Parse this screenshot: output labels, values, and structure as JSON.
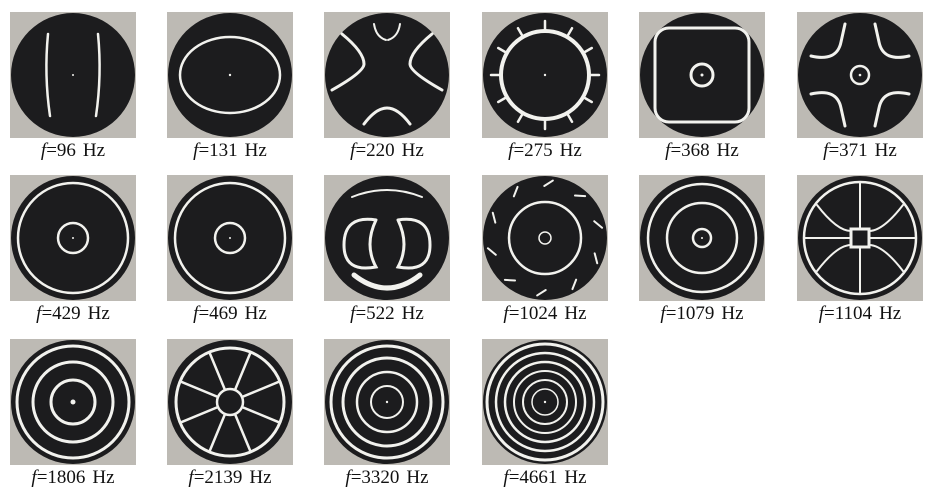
{
  "figure": {
    "panels": [
      {
        "pattern": "two-vertical-lines",
        "symbol": "f",
        "value": "96",
        "unit": "Hz"
      },
      {
        "pattern": "ellipse",
        "symbol": "f",
        "value": "131",
        "unit": "Hz"
      },
      {
        "pattern": "four-arms-x",
        "symbol": "f",
        "value": "220",
        "unit": "Hz"
      },
      {
        "pattern": "ring-with-spikes",
        "symbol": "f",
        "value": "275",
        "unit": "Hz"
      },
      {
        "pattern": "rounded-square-small-ring",
        "symbol": "f",
        "value": "368",
        "unit": "Hz"
      },
      {
        "pattern": "four-arms-small-ring",
        "symbol": "f",
        "value": "371",
        "unit": "Hz"
      },
      {
        "pattern": "two-rings",
        "symbol": "f",
        "value": "429",
        "unit": "Hz"
      },
      {
        "pattern": "two-rings",
        "symbol": "f",
        "value": "469",
        "unit": "Hz"
      },
      {
        "pattern": "butterfly",
        "symbol": "f",
        "value": "522",
        "unit": "Hz"
      },
      {
        "pattern": "rings-edge-dashes",
        "symbol": "f",
        "value": "1024",
        "unit": "Hz"
      },
      {
        "pattern": "three-rings",
        "symbol": "f",
        "value": "1079",
        "unit": "Hz"
      },
      {
        "pattern": "grid-web",
        "symbol": "f",
        "value": "1104",
        "unit": "Hz"
      },
      {
        "pattern": "three-rings-dot",
        "symbol": "f",
        "value": "1806",
        "unit": "Hz"
      },
      {
        "pattern": "spokes-wheel",
        "symbol": "f",
        "value": "2139",
        "unit": "Hz"
      },
      {
        "pattern": "four-rings",
        "symbol": "f",
        "value": "3320",
        "unit": "Hz"
      },
      {
        "pattern": "many-rings",
        "symbol": "f",
        "value": "4661",
        "unit": "Hz"
      }
    ],
    "colors": {
      "plate": "#1c1c1e",
      "sand": "#f2f2ee",
      "background_surface": "#bdbab4",
      "caption_text": "#111111"
    }
  }
}
